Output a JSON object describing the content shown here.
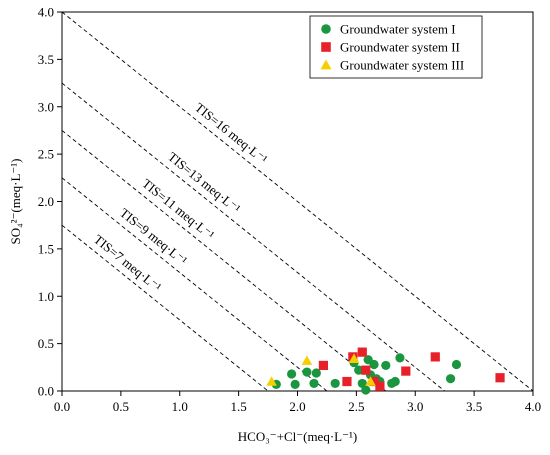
{
  "chart_data": {
    "type": "scatter",
    "xlabel": "HCO₃⁻+Cl⁻(meq·L⁻¹)",
    "ylabel": "SO₄²⁻(meq·L⁻¹)",
    "xlim": [
      0.0,
      4.0
    ],
    "ylim": [
      0.0,
      4.0
    ],
    "x_ticks": [
      "0.0",
      "0.5",
      "1.0",
      "1.5",
      "2.0",
      "2.5",
      "3.0",
      "3.5",
      "4.0"
    ],
    "y_ticks": [
      "0.0",
      "0.5",
      "1.0",
      "1.5",
      "2.0",
      "2.5",
      "3.0",
      "3.5",
      "4.0"
    ],
    "grid": false,
    "legend_position": "top-right",
    "reference_lines": [
      {
        "label": "TIS=16 meq·L⁻¹",
        "x": [
          0.0,
          4.0
        ],
        "y": [
          4.0,
          0.0
        ]
      },
      {
        "label": "TIS=13 meq·L⁻¹",
        "x": [
          0.0,
          3.25
        ],
        "y": [
          3.25,
          0.0
        ]
      },
      {
        "label": "TIS=11 meq·L⁻¹",
        "x": [
          0.0,
          2.75
        ],
        "y": [
          2.75,
          0.0
        ]
      },
      {
        "label": "TIS=9 meq·L⁻¹",
        "x": [
          0.0,
          2.25
        ],
        "y": [
          2.25,
          0.0
        ]
      },
      {
        "label": "TIS=7 meq·L⁻¹",
        "x": [
          0.0,
          1.75
        ],
        "y": [
          1.75,
          0.0
        ]
      }
    ],
    "series": [
      {
        "name": "Groundwater system I",
        "marker": "circle",
        "color": "#1a9641",
        "points": [
          [
            1.82,
            0.07
          ],
          [
            1.95,
            0.18
          ],
          [
            1.98,
            0.07
          ],
          [
            2.08,
            0.2
          ],
          [
            2.14,
            0.08
          ],
          [
            2.16,
            0.19
          ],
          [
            2.32,
            0.08
          ],
          [
            2.48,
            0.3
          ],
          [
            2.52,
            0.22
          ],
          [
            2.55,
            0.08
          ],
          [
            2.58,
            0.01
          ],
          [
            2.6,
            0.33
          ],
          [
            2.62,
            0.17
          ],
          [
            2.65,
            0.28
          ],
          [
            2.67,
            0.13
          ],
          [
            2.7,
            0.1
          ],
          [
            2.75,
            0.27
          ],
          [
            2.8,
            0.08
          ],
          [
            2.83,
            0.1
          ],
          [
            2.87,
            0.35
          ],
          [
            3.3,
            0.13
          ],
          [
            3.35,
            0.28
          ]
        ]
      },
      {
        "name": "Groundwater system II",
        "marker": "square",
        "color": "#e8202a",
        "points": [
          [
            2.22,
            0.27
          ],
          [
            2.42,
            0.1
          ],
          [
            2.47,
            0.36
          ],
          [
            2.55,
            0.41
          ],
          [
            2.58,
            0.22
          ],
          [
            2.65,
            0.1
          ],
          [
            2.7,
            0.05
          ],
          [
            2.92,
            0.21
          ],
          [
            3.17,
            0.36
          ],
          [
            3.72,
            0.14
          ]
        ]
      },
      {
        "name": "Groundwater system III",
        "marker": "triangle",
        "color": "#f5d000",
        "points": [
          [
            1.78,
            0.1
          ],
          [
            2.08,
            0.32
          ],
          [
            2.48,
            0.34
          ],
          [
            2.62,
            0.1
          ]
        ]
      }
    ]
  }
}
